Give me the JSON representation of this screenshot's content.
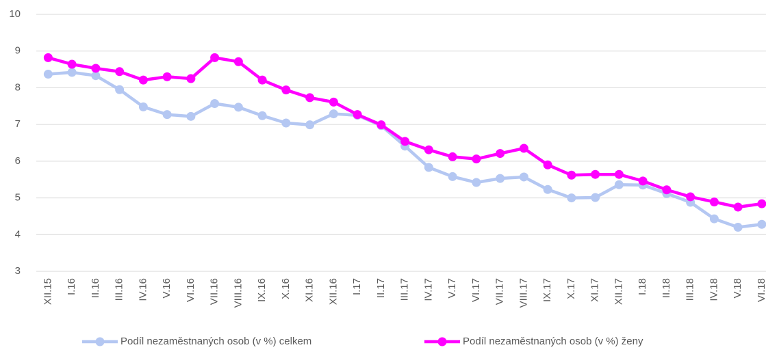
{
  "chart_data": {
    "type": "line",
    "categories": [
      "XII.15",
      "I.16",
      "II.16",
      "III.16",
      "IV.16",
      "V.16",
      "VI.16",
      "VII.16",
      "VIII.16",
      "IX.16",
      "X.16",
      "XI.16",
      "XII.16",
      "I.17",
      "II.17",
      "III.17",
      "IV.17",
      "V.17",
      "VI.17",
      "VII.17",
      "VIII.17",
      "IX.17",
      "X.17",
      "XI.17",
      "XII.17",
      "I.18",
      "II.18",
      "III.18",
      "IV.18",
      "V.18",
      "VI.18"
    ],
    "series": [
      {
        "name": "Podíl nezaměstnaných osob (v %) celkem",
        "color": "#b4c7f2",
        "values": [
          8.37,
          8.42,
          8.33,
          7.95,
          7.48,
          7.27,
          7.22,
          7.57,
          7.47,
          7.24,
          7.04,
          6.99,
          7.29,
          7.25,
          6.97,
          6.41,
          5.83,
          5.58,
          5.42,
          5.53,
          5.57,
          5.23,
          5.0,
          5.01,
          5.36,
          5.35,
          5.12,
          4.88,
          4.43,
          4.2,
          4.28
        ]
      },
      {
        "name": "Podíl nezaměstnaných osob (v %) ženy",
        "color": "#ff00ff",
        "values": [
          8.82,
          8.64,
          8.53,
          8.44,
          8.21,
          8.3,
          8.25,
          8.82,
          8.71,
          8.21,
          7.94,
          7.73,
          7.61,
          7.27,
          6.99,
          6.54,
          6.31,
          6.12,
          6.06,
          6.21,
          6.35,
          5.9,
          5.62,
          5.64,
          5.64,
          5.46,
          5.22,
          5.03,
          4.89,
          4.75,
          4.84
        ]
      }
    ],
    "ylim": [
      3,
      10
    ],
    "yticks": [
      3,
      4,
      5,
      6,
      7,
      8,
      9,
      10
    ],
    "grid": true,
    "legend": "bottom"
  }
}
